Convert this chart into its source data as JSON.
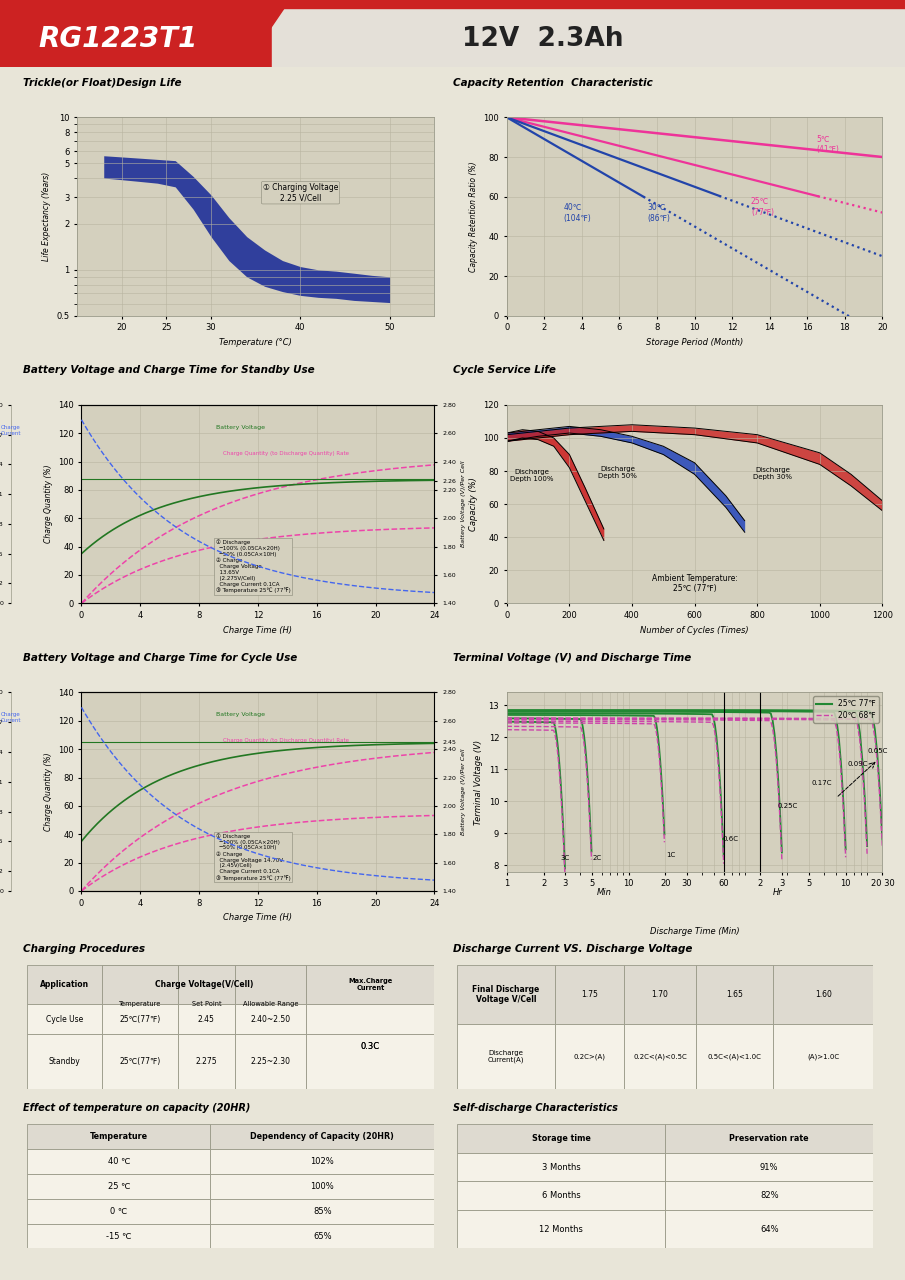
{
  "title_model": "RG1223T1",
  "title_spec": "12V  2.3Ah",
  "page_bg": "#e8e5d8",
  "chart_bg": "#d4d0be",
  "table_bg": "#f5f2e8",
  "table_hdr_bg": "#dedad0",
  "trickle_title": "Trickle(or Float)Design Life",
  "trickle_xlabel": "Temperature (°C)",
  "trickle_ylabel": "Life Expectancy (Years)",
  "trickle_annotation": "① Charging Voltage\n2.25 V/Cell",
  "cap_ret_title": "Capacity Retention  Characteristic",
  "cap_ret_xlabel": "Storage Period (Month)",
  "cap_ret_ylabel": "Capacity Retention Ratio (%)",
  "batt_standby_title": "Battery Voltage and Charge Time for Standby Use",
  "batt_standby_xlabel": "Charge Time (H)",
  "batt_cycle_title": "Battery Voltage and Charge Time for Cycle Use",
  "batt_cycle_xlabel": "Charge Time (H)",
  "cycle_life_title": "Cycle Service Life",
  "cycle_life_xlabel": "Number of Cycles (Times)",
  "cycle_life_ylabel": "Capacity (%)",
  "terminal_title": "Terminal Voltage (V) and Discharge Time",
  "terminal_xlabel": "Discharge Time (Min)",
  "terminal_ylabel": "Terminal Voltage (V)",
  "charging_title": "Charging Procedures",
  "discharge_cv_title": "Discharge Current VS. Discharge Voltage",
  "temp_effect_title": "Effect of temperature on capacity (20HR)",
  "self_discharge_title": "Self-discharge Characteristics",
  "charge_rows": [
    [
      "Cycle Use",
      "25℃(77℉)",
      "2.45",
      "2.40~2.50"
    ],
    [
      "Standby",
      "25℃(77℉)",
      "2.275",
      "2.25~2.30"
    ]
  ],
  "charge_max": "0.3C",
  "discharge_headers": [
    "Final Discharge\nVoltage V/Cell",
    "1.75",
    "1.70",
    "1.65",
    "1.60"
  ],
  "discharge_row": [
    "Discharge\nCurrent(A)",
    "0.2C>(A)",
    "0.2C<(A)<0.5C",
    "0.5C<(A)<1.0C",
    "(A)>1.0C"
  ],
  "temp_rows": [
    [
      "40 ℃",
      "102%"
    ],
    [
      "25 ℃",
      "100%"
    ],
    [
      "0 ℃",
      "85%"
    ],
    [
      "-15 ℃",
      "65%"
    ]
  ],
  "sd_rows": [
    [
      "3 Months",
      "91%"
    ],
    [
      "6 Months",
      "82%"
    ],
    [
      "12 Months",
      "64%"
    ]
  ]
}
